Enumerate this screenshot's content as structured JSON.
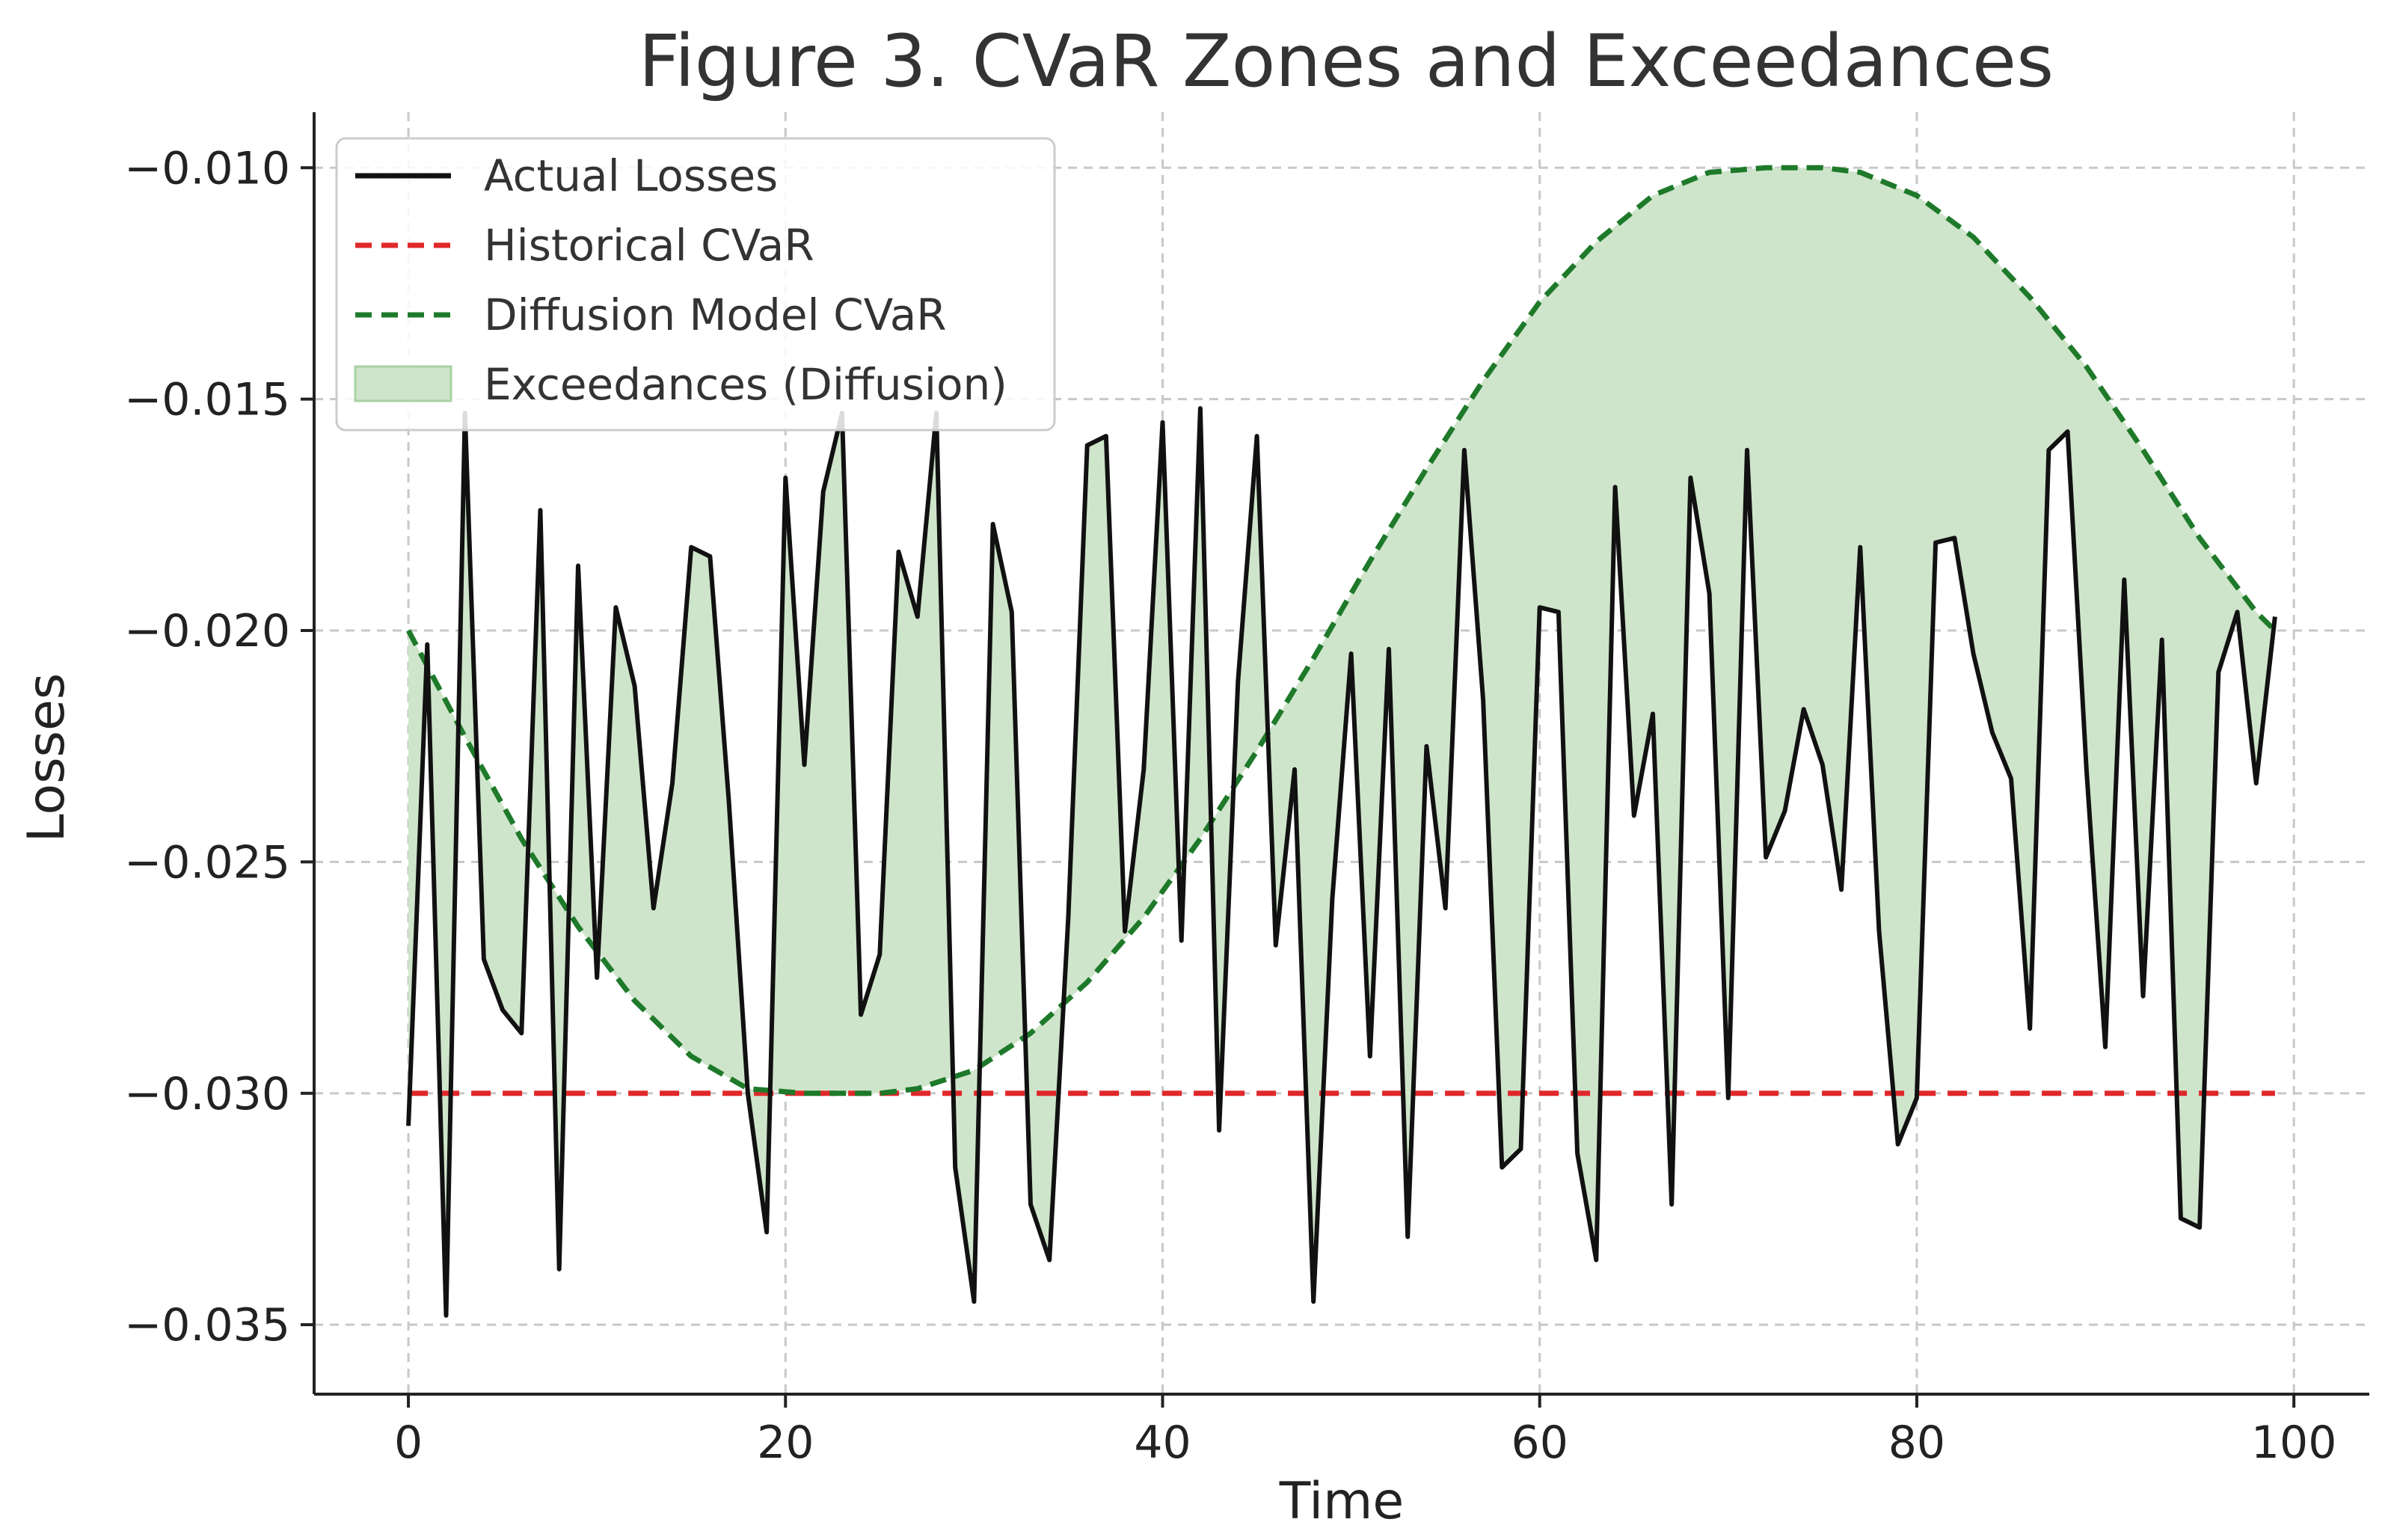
{
  "chart_data": {
    "type": "line",
    "title": "Figure 3. CVaR Zones and Exceedances",
    "xlabel": "Time",
    "ylabel": "Losses",
    "xlim": [
      -5,
      104
    ],
    "ylim": [
      -0.0365,
      -0.0088
    ],
    "xticks": [
      0,
      20,
      40,
      60,
      80,
      100
    ],
    "xtick_labels": [
      "0",
      "20",
      "40",
      "60",
      "80",
      "100"
    ],
    "yticks": [
      -0.035,
      -0.03,
      -0.025,
      -0.02,
      -0.015,
      -0.01
    ],
    "ytick_labels": [
      "−0.035",
      "−0.030",
      "−0.025",
      "−0.020",
      "−0.015",
      "−0.010"
    ],
    "grid": true,
    "legend_position": "top-left",
    "legend": [
      {
        "key": "actual",
        "label": "Actual Losses",
        "style": "solid-line"
      },
      {
        "key": "historical",
        "label": "Historical CVaR",
        "style": "dashed-line"
      },
      {
        "key": "diffusion",
        "label": "Diffusion Model CVaR",
        "style": "dashed-line"
      },
      {
        "key": "exceed",
        "label": "Exceedances (Diffusion)",
        "style": "patch"
      }
    ],
    "colors": {
      "actual": "#111111",
      "historical": "#e0282b",
      "diffusion": "#1e7a2a",
      "exceed_fill": "#cfe5cb",
      "exceed_edge": "#a9d1a5"
    },
    "series": [
      {
        "key": "actual",
        "x": [
          0,
          1,
          2,
          3,
          4,
          5,
          6,
          7,
          8,
          9,
          10,
          11,
          12,
          13,
          14,
          15,
          16,
          17,
          18,
          19,
          20,
          21,
          22,
          23,
          24,
          25,
          26,
          27,
          28,
          29,
          30,
          31,
          32,
          33,
          34,
          35,
          36,
          37,
          38,
          39,
          40,
          41,
          42,
          43,
          44,
          45,
          46,
          47,
          48,
          49,
          50,
          51,
          52,
          53,
          54,
          55,
          56,
          57,
          58,
          59,
          60,
          61,
          62,
          63,
          64,
          65,
          66,
          67,
          68,
          69,
          70,
          71,
          72,
          73,
          74,
          75,
          76,
          77,
          78,
          79,
          80,
          81,
          82,
          83,
          84,
          85,
          86,
          87,
          88,
          89,
          90,
          91,
          92,
          93,
          94,
          95,
          96,
          97,
          98,
          99
        ],
        "values": [
          -0.0307,
          -0.0203,
          -0.0348,
          -0.0153,
          -0.0271,
          -0.0282,
          -0.0287,
          -0.0174,
          -0.0338,
          -0.0186,
          -0.0275,
          -0.0195,
          -0.0212,
          -0.026,
          -0.0233,
          -0.0182,
          -0.0184,
          -0.0237,
          -0.03,
          -0.033,
          -0.0167,
          -0.0229,
          -0.017,
          -0.0153,
          -0.0283,
          -0.027,
          -0.0183,
          -0.0197,
          -0.0153,
          -0.0316,
          -0.0345,
          -0.0177,
          -0.0196,
          -0.0324,
          -0.0336,
          -0.0262,
          -0.016,
          -0.0158,
          -0.0265,
          -0.023,
          -0.0155,
          -0.0267,
          -0.0152,
          -0.0308,
          -0.0211,
          -0.0158,
          -0.0268,
          -0.023,
          -0.0345,
          -0.0258,
          -0.0205,
          -0.0292,
          -0.0204,
          -0.0331,
          -0.0225,
          -0.026,
          -0.0161,
          -0.0215,
          -0.0316,
          -0.0312,
          -0.0195,
          -0.0196,
          -0.0313,
          -0.0336,
          -0.0169,
          -0.024,
          -0.0218,
          -0.0324,
          -0.0167,
          -0.0192,
          -0.0301,
          -0.0161,
          -0.0249,
          -0.0239,
          -0.0217,
          -0.0229,
          -0.0256,
          -0.0182,
          -0.0265,
          -0.0311,
          -0.0301,
          -0.0181,
          -0.018,
          -0.0205,
          -0.0222,
          -0.0232,
          -0.0286,
          -0.0161,
          -0.0157,
          -0.023,
          -0.029,
          -0.0189,
          -0.0279,
          -0.0202,
          -0.0327,
          -0.0329,
          -0.0209,
          -0.0196,
          -0.0233,
          -0.0197
        ]
      },
      {
        "key": "historical",
        "x": [
          0,
          99
        ],
        "values": [
          -0.03,
          -0.03
        ]
      },
      {
        "key": "diffusion",
        "x": [
          0,
          3,
          6,
          9,
          12,
          15,
          18,
          21,
          24,
          25,
          27,
          30,
          33,
          36,
          39,
          42,
          45,
          48,
          51,
          54,
          57,
          60,
          63,
          66,
          69,
          72,
          74,
          75,
          77,
          80,
          83,
          86,
          89,
          92,
          95,
          98,
          99
        ],
        "values": [
          -0.02,
          -0.0223,
          -0.0245,
          -0.0264,
          -0.028,
          -0.0292,
          -0.0299,
          -0.03,
          -0.03,
          -0.03,
          -0.0299,
          -0.0295,
          -0.0287,
          -0.0276,
          -0.0262,
          -0.0245,
          -0.0226,
          -0.0206,
          -0.0185,
          -0.0165,
          -0.0146,
          -0.0129,
          -0.0116,
          -0.0106,
          -0.0101,
          -0.01,
          -0.01,
          -0.01,
          -0.0101,
          -0.0106,
          -0.0115,
          -0.0128,
          -0.0143,
          -0.0161,
          -0.018,
          -0.0196,
          -0.02
        ]
      }
    ]
  }
}
